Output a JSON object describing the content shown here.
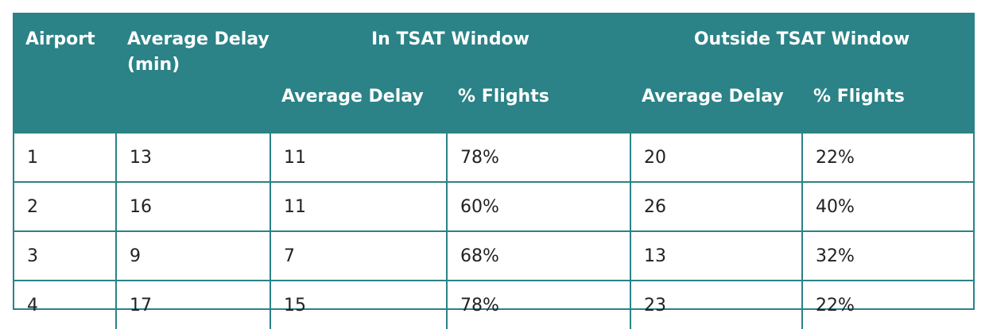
{
  "header": {
    "airport": "Airport",
    "avg_delay": "Average Delay (min)",
    "in_group": "In TSAT Window",
    "out_group": "Outside TSAT Window",
    "in_avg": "Average Delay",
    "in_pct": "% Flights",
    "out_avg": "Average Delay",
    "out_pct": "% Flights"
  },
  "rows": [
    {
      "airport": "1",
      "avg": "13",
      "in_avg": "11",
      "in_pct": "78%",
      "out_avg": "20",
      "out_pct": "22%"
    },
    {
      "airport": "2",
      "avg": "16",
      "in_avg": "11",
      "in_pct": "60%",
      "out_avg": "26",
      "out_pct": "40%"
    },
    {
      "airport": "3",
      "avg": "9",
      "in_avg": "7",
      "in_pct": "68%",
      "out_avg": "13",
      "out_pct": "32%"
    },
    {
      "airport": "4",
      "avg": "17",
      "in_avg": "15",
      "in_pct": "78%",
      "out_avg": "23",
      "out_pct": "22%"
    }
  ],
  "colors": {
    "header_bg": "#2b8287",
    "header_text": "#ffffff",
    "border": "#2b8287"
  }
}
